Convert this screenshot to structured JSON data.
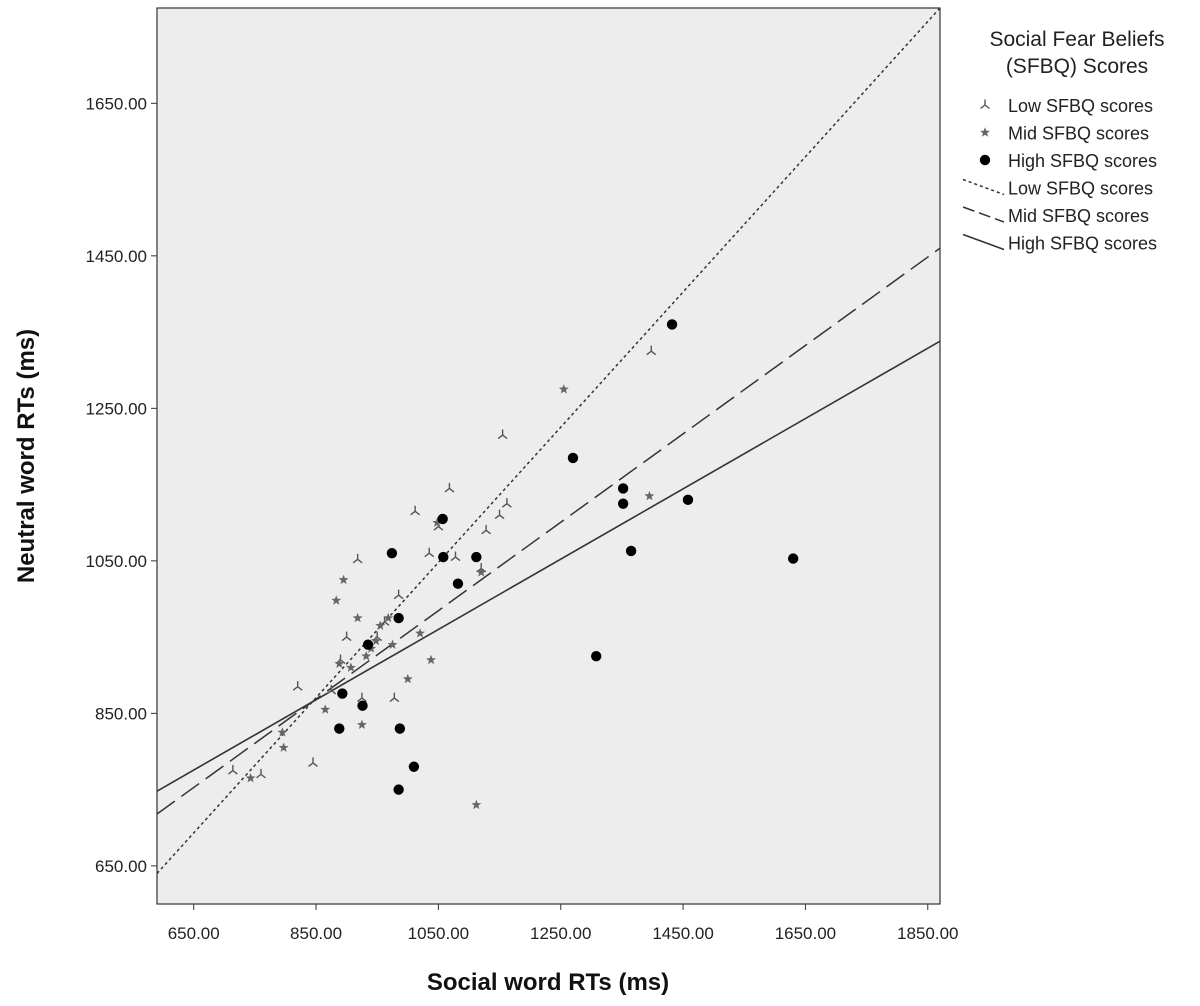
{
  "chart_data": {
    "type": "scatter",
    "xlabel": "Social word RTs (ms)",
    "ylabel": "Neutral word RTs (ms)",
    "xlim": [
      590,
      1870
    ],
    "ylim": [
      600,
      1775
    ],
    "x_ticks": [
      650,
      850,
      1050,
      1250,
      1450,
      1650,
      1850
    ],
    "x_tick_labels": [
      "650.00",
      "850.00",
      "1050.00",
      "1250.00",
      "1450.00",
      "1650.00",
      "1850.00"
    ],
    "y_ticks": [
      650,
      850,
      1050,
      1250,
      1450,
      1650
    ],
    "y_tick_labels": [
      "650.00",
      "850.00",
      "1050.00",
      "1250.00",
      "1450.00",
      "1650.00"
    ],
    "grid": false,
    "plot_background": "#ededed",
    "legend": {
      "title_lines": [
        "Social Fear Beliefs",
        "(SFBQ) Scores"
      ],
      "placement": "right"
    },
    "series": [
      {
        "name": "Low SFBQ scores",
        "marker": "tri",
        "points": [
          [
            714,
            775
          ],
          [
            760,
            770
          ],
          [
            820,
            885
          ],
          [
            845,
            785
          ],
          [
            875,
            880
          ],
          [
            890,
            920
          ],
          [
            900,
            950
          ],
          [
            918,
            1052
          ],
          [
            925,
            870
          ],
          [
            950,
            950
          ],
          [
            962,
            970
          ],
          [
            978,
            870
          ],
          [
            985,
            1005
          ],
          [
            1012,
            1115
          ],
          [
            1035,
            1060
          ],
          [
            1050,
            1095
          ],
          [
            1068,
            1145
          ],
          [
            1078,
            1055
          ],
          [
            1120,
            1040
          ],
          [
            1128,
            1090
          ],
          [
            1150,
            1110
          ],
          [
            1155,
            1215
          ],
          [
            1162,
            1125
          ],
          [
            1398,
            1325
          ]
        ]
      },
      {
        "name": "Mid SFBQ scores",
        "marker": "star",
        "points": [
          [
            743,
            765
          ],
          [
            795,
            825
          ],
          [
            797,
            805
          ],
          [
            865,
            855
          ],
          [
            883,
            998
          ],
          [
            888,
            915
          ],
          [
            895,
            1025
          ],
          [
            907,
            910
          ],
          [
            918,
            975
          ],
          [
            925,
            835
          ],
          [
            932,
            925
          ],
          [
            940,
            935
          ],
          [
            948,
            945
          ],
          [
            955,
            965
          ],
          [
            968,
            975
          ],
          [
            975,
            940
          ],
          [
            1000,
            895
          ],
          [
            1020,
            955
          ],
          [
            1038,
            920
          ],
          [
            1048,
            1100
          ],
          [
            1112,
            730
          ],
          [
            1120,
            1035
          ],
          [
            1255,
            1275
          ],
          [
            1395,
            1135
          ]
        ]
      },
      {
        "name": "High SFBQ scores",
        "marker": "dot",
        "points": [
          [
            888,
            830
          ],
          [
            893,
            876
          ],
          [
            926,
            860
          ],
          [
            935,
            940
          ],
          [
            974,
            1060
          ],
          [
            985,
            975
          ],
          [
            985,
            750
          ],
          [
            987,
            830
          ],
          [
            1010,
            780
          ],
          [
            1057,
            1105
          ],
          [
            1058,
            1055
          ],
          [
            1082,
            1020
          ],
          [
            1112,
            1055
          ],
          [
            1270,
            1185
          ],
          [
            1308,
            925
          ],
          [
            1352,
            1145
          ],
          [
            1352,
            1125
          ],
          [
            1365,
            1063
          ],
          [
            1432,
            1360
          ],
          [
            1458,
            1130
          ],
          [
            1630,
            1053
          ]
        ]
      }
    ],
    "fit_lines": [
      {
        "name": "Low SFBQ scores",
        "style": "dotted",
        "points": [
          [
            590,
            640
          ],
          [
            1870,
            1775
          ]
        ]
      },
      {
        "name": "Mid SFBQ scores",
        "style": "dashed",
        "points": [
          [
            590,
            718
          ],
          [
            1870,
            1460
          ]
        ]
      },
      {
        "name": "High SFBQ scores",
        "style": "solid",
        "points": [
          [
            590,
            748
          ],
          [
            1870,
            1338
          ]
        ]
      }
    ]
  }
}
